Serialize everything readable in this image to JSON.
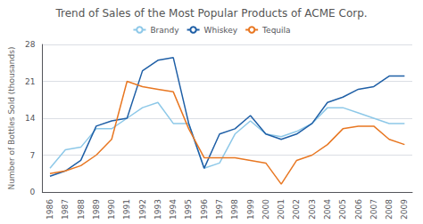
{
  "chart_data": {
    "type": "line",
    "title": "Trend of Sales of the Most Popular Products of ACME Corp.",
    "ylabel": "Number of Bottles Sold (thousands)",
    "categories": [
      1986,
      1987,
      1988,
      1989,
      1990,
      1991,
      1992,
      1993,
      1994,
      1995,
      1996,
      1997,
      1998,
      1999,
      2000,
      2001,
      2002,
      2003,
      2004,
      2005,
      2006,
      2007,
      2008,
      2009
    ],
    "series": [
      {
        "name": "Brandy",
        "color": "#8DC8E8",
        "values": [
          4.5,
          8,
          8.5,
          12,
          12,
          14,
          16,
          17,
          13,
          13,
          4.5,
          5.5,
          11,
          13.5,
          11,
          10.5,
          11.5,
          13,
          16,
          16,
          15,
          14,
          13,
          13
        ]
      },
      {
        "name": "Whiskey",
        "color": "#1F5FA6",
        "values": [
          3,
          4,
          6,
          12.5,
          13.5,
          14,
          23,
          25,
          25.5,
          13,
          4.5,
          11,
          12,
          14.5,
          11,
          10,
          11,
          13,
          17,
          18,
          19.5,
          20,
          22,
          22
        ]
      },
      {
        "name": "Tequila",
        "color": "#E87722",
        "values": [
          3.5,
          4,
          5,
          7,
          10,
          21,
          20,
          19.5,
          19,
          12,
          6.5,
          6.5,
          6.5,
          6,
          5.5,
          1.5,
          6,
          7,
          9,
          12,
          12.5,
          12.5,
          10,
          9
        ]
      }
    ],
    "ylim": [
      0,
      28
    ],
    "yticks": [
      0,
      7,
      14,
      21,
      28
    ],
    "grid": true,
    "legend": "top"
  }
}
